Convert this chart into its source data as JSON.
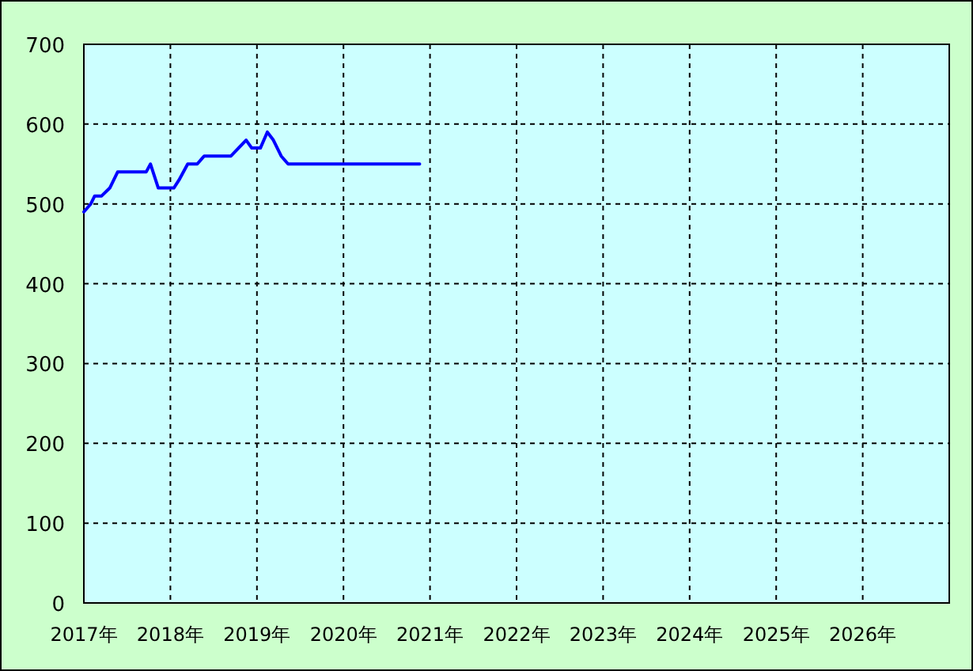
{
  "chart_data": {
    "type": "line",
    "x": [
      2017.0,
      2017.08,
      2017.125,
      2017.205,
      2017.3,
      2017.39,
      2017.72,
      2017.77,
      2017.86,
      2018.04,
      2018.1,
      2018.2,
      2018.31,
      2018.39,
      2018.7,
      2018.875,
      2018.94,
      2019.04,
      2019.12,
      2019.19,
      2019.28,
      2019.36,
      2020.88
    ],
    "series": [
      {
        "color": "#0000ff",
        "values": [
          490,
          500,
          510,
          510,
          520,
          540,
          540,
          550,
          520,
          520,
          530,
          550,
          550,
          560,
          560,
          580,
          570,
          570,
          590,
          580,
          560,
          550,
          550
        ]
      }
    ],
    "xlim": [
      2017,
      2027
    ],
    "xticks": [
      {
        "value": 2017,
        "label": "2017年"
      },
      {
        "value": 2018,
        "label": "2018年"
      },
      {
        "value": 2019,
        "label": "2019年"
      },
      {
        "value": 2020,
        "label": "2020年"
      },
      {
        "value": 2021,
        "label": "2021年"
      },
      {
        "value": 2022,
        "label": "2022年"
      },
      {
        "value": 2023,
        "label": "2023年"
      },
      {
        "value": 2024,
        "label": "2024年"
      },
      {
        "value": 2025,
        "label": "2025年"
      },
      {
        "value": 2026,
        "label": "2026年"
      },
      {
        "value": 2027,
        "label": null
      }
    ],
    "ylim": [
      0,
      700
    ],
    "yticks": [
      0,
      100,
      200,
      300,
      400,
      500,
      600,
      700
    ],
    "grid": true,
    "marker": "none",
    "line_style": "solid"
  }
}
